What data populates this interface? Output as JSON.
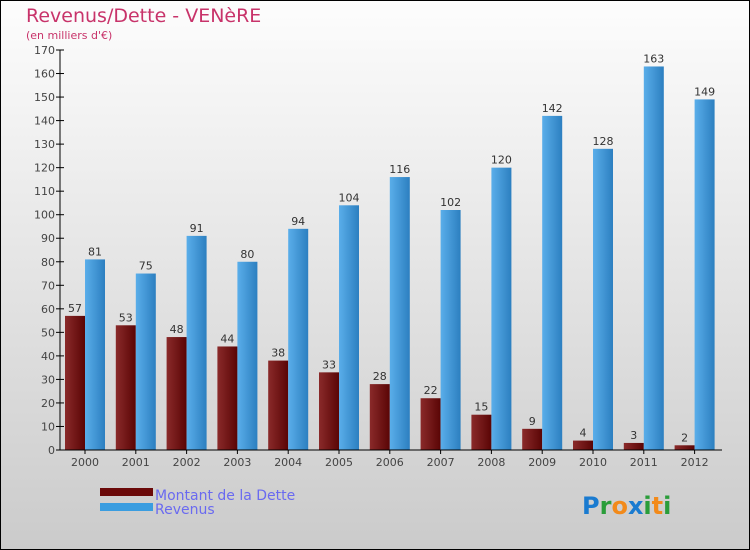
{
  "chart_data": {
    "type": "bar",
    "title": "Revenus/Dette - VENèRE",
    "subtitle": "(en milliers d'€)",
    "categories": [
      "2000",
      "2001",
      "2002",
      "2003",
      "2004",
      "2005",
      "2006",
      "2007",
      "2008",
      "2009",
      "2010",
      "2011",
      "2012"
    ],
    "series": [
      {
        "name": "Montant de la Dette",
        "color": "#6b0a0a",
        "values": [
          57,
          53,
          48,
          44,
          38,
          33,
          28,
          22,
          15,
          9,
          4,
          3,
          2
        ]
      },
      {
        "name": "Revenus",
        "color": "#3a9de0",
        "values": [
          81,
          75,
          91,
          80,
          94,
          104,
          116,
          102,
          120,
          142,
          128,
          163,
          149
        ]
      }
    ],
    "ylim": [
      0,
      170
    ],
    "yticks": [
      0,
      10,
      20,
      30,
      40,
      50,
      60,
      70,
      80,
      90,
      100,
      110,
      120,
      130,
      140,
      150,
      160,
      170
    ],
    "legend": "bottom-left"
  },
  "brand": "Proxiti"
}
